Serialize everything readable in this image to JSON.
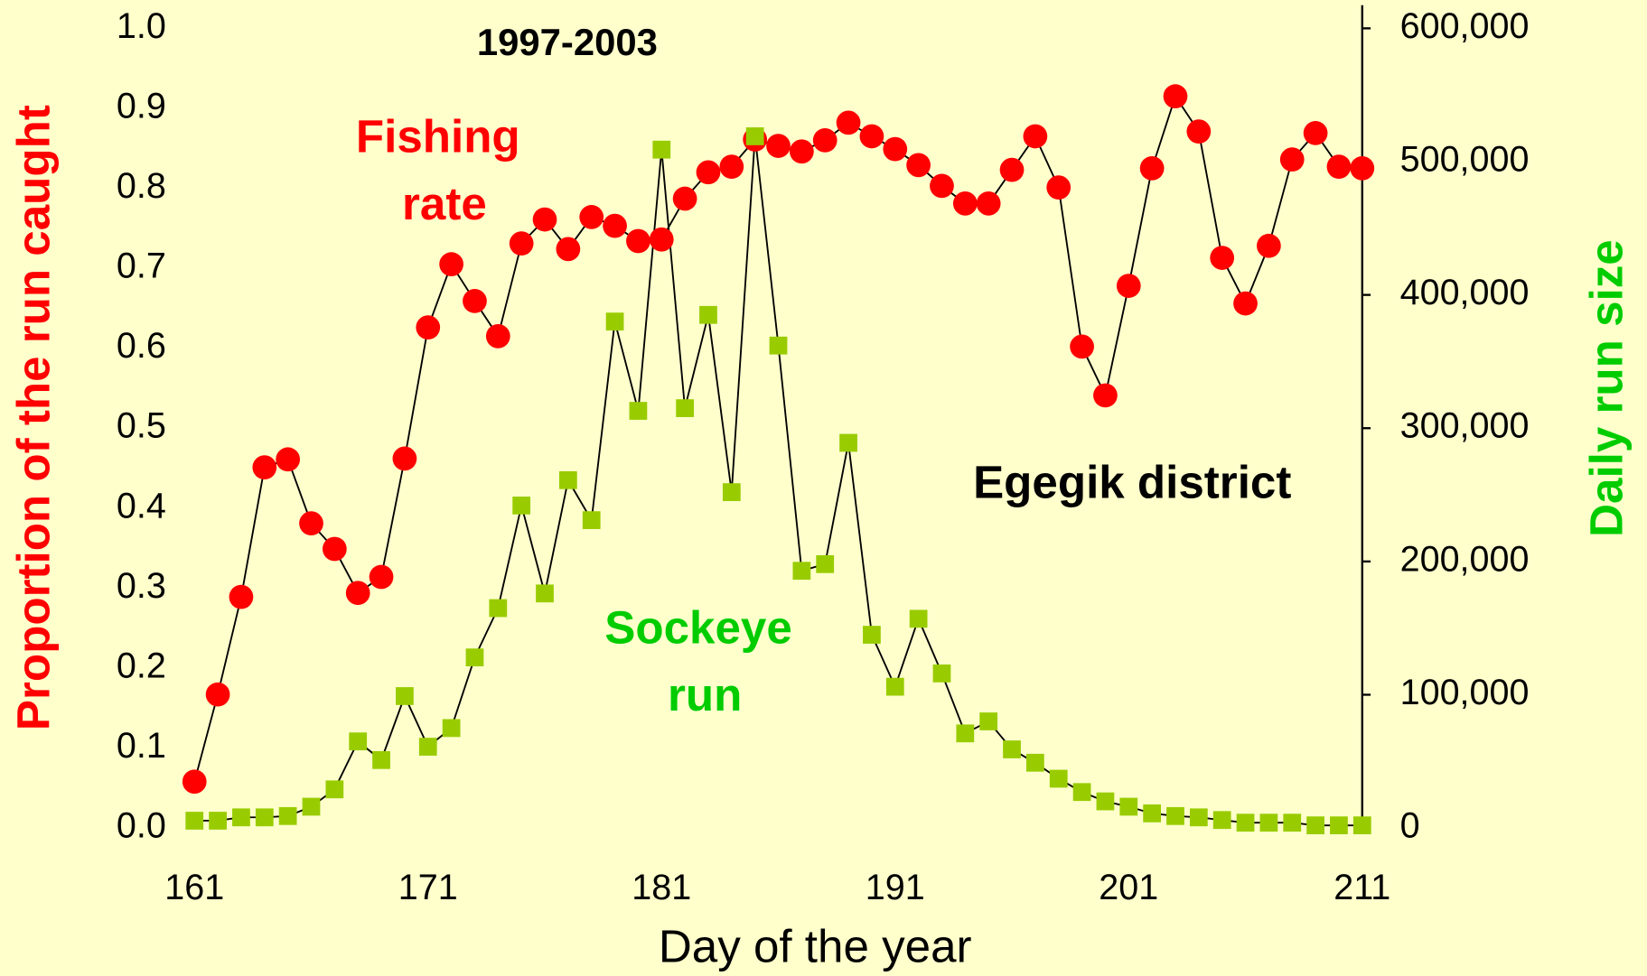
{
  "chart_data": {
    "type": "line",
    "title": "1997-2003",
    "annotations": [
      "Egegik district"
    ],
    "x_label": "Day of the year",
    "y_label": "Proportion of the run caught",
    "y2_label": "Daily run size",
    "x": [
      161,
      162,
      163,
      164,
      165,
      166,
      167,
      168,
      169,
      170,
      171,
      172,
      173,
      174,
      175,
      176,
      177,
      178,
      179,
      180,
      181,
      182,
      183,
      184,
      185,
      186,
      187,
      188,
      189,
      190,
      191,
      192,
      193,
      194,
      195,
      196,
      197,
      198,
      199,
      200,
      201,
      202,
      203,
      204,
      205,
      206,
      207,
      208,
      209,
      210,
      211
    ],
    "xlim": [
      161,
      211
    ],
    "xticks": [
      161,
      171,
      181,
      191,
      201,
      211
    ],
    "ylim": [
      0,
      1
    ],
    "yticks": [
      {
        "value": 0,
        "label": "0.0"
      },
      0.1,
      0.2,
      0.3,
      0.4,
      0.5,
      0.6,
      0.7,
      0.8,
      0.9,
      {
        "value": 1,
        "label": "1.0"
      }
    ],
    "y2lim": [
      0,
      600000
    ],
    "y2ticks": [
      0,
      {
        "value": 100000,
        "label": "100,000"
      },
      {
        "value": 200000,
        "label": "200,000"
      },
      {
        "value": 300000,
        "label": "300,000"
      },
      {
        "value": 400000,
        "label": "400,000"
      },
      {
        "value": 500000,
        "label": "500,000"
      },
      {
        "value": 600000,
        "label": "600,000"
      }
    ],
    "series": [
      {
        "name": "Fishing rate",
        "color": "#ff0000",
        "marker": "circle",
        "values": [
          0.058,
          0.167,
          0.289,
          0.451,
          0.461,
          0.381,
          0.349,
          0.294,
          0.314,
          0.462,
          0.626,
          0.705,
          0.659,
          0.615,
          0.731,
          0.761,
          0.724,
          0.764,
          0.753,
          0.734,
          0.736,
          0.787,
          0.82,
          0.827,
          0.861,
          0.853,
          0.846,
          0.86,
          0.882,
          0.865,
          0.849,
          0.829,
          0.803,
          0.781,
          0.781,
          0.823,
          0.865,
          0.801,
          0.602,
          0.541,
          0.678,
          0.825,
          0.915,
          0.871,
          0.713,
          0.656,
          0.728,
          0.836,
          0.869,
          0.827,
          0.825
        ]
      },
      {
        "name": "Sockeye run",
        "color": "#99cc00",
        "label_color": "#00cc00",
        "marker": "square",
        "axis": "y2",
        "values": [
          5500,
          5500,
          8000,
          8000,
          9000,
          16000,
          29000,
          65000,
          51000,
          99000,
          61000,
          75000,
          128000,
          165000,
          242000,
          176000,
          261000,
          231000,
          380000,
          313000,
          509000,
          315000,
          385000,
          252000,
          519000,
          362000,
          193000,
          198000,
          289000,
          145000,
          106000,
          157000,
          116000,
          71000,
          80000,
          59000,
          49000,
          37000,
          27000,
          20000,
          16000,
          11000,
          9000,
          8000,
          6000,
          4000,
          4000,
          4000,
          2000,
          2000,
          2000
        ]
      }
    ]
  }
}
